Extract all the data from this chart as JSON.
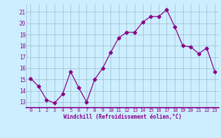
{
  "x": [
    0,
    1,
    2,
    3,
    4,
    5,
    6,
    7,
    8,
    9,
    10,
    11,
    12,
    13,
    14,
    15,
    16,
    17,
    18,
    19,
    20,
    21,
    22,
    23
  ],
  "y": [
    15.1,
    14.4,
    13.2,
    12.9,
    13.7,
    15.7,
    14.3,
    13.0,
    15.0,
    16.0,
    17.4,
    18.7,
    19.2,
    19.2,
    20.1,
    20.6,
    20.6,
    21.2,
    19.7,
    18.0,
    17.9,
    17.3,
    17.8,
    15.7
  ],
  "line_color": "#880088",
  "marker": "D",
  "marker_size": 2.5,
  "bg_color": "#cceeff",
  "grid_color": "#99bbcc",
  "xlabel": "Windchill (Refroidissement éolien,°C)",
  "tick_color": "#880088",
  "ylim": [
    12.5,
    21.7
  ],
  "yticks": [
    13,
    14,
    15,
    16,
    17,
    18,
    19,
    20,
    21
  ],
  "xticks": [
    0,
    1,
    2,
    3,
    4,
    5,
    6,
    7,
    8,
    9,
    10,
    11,
    12,
    13,
    14,
    15,
    16,
    17,
    18,
    19,
    20,
    21,
    22,
    23
  ]
}
